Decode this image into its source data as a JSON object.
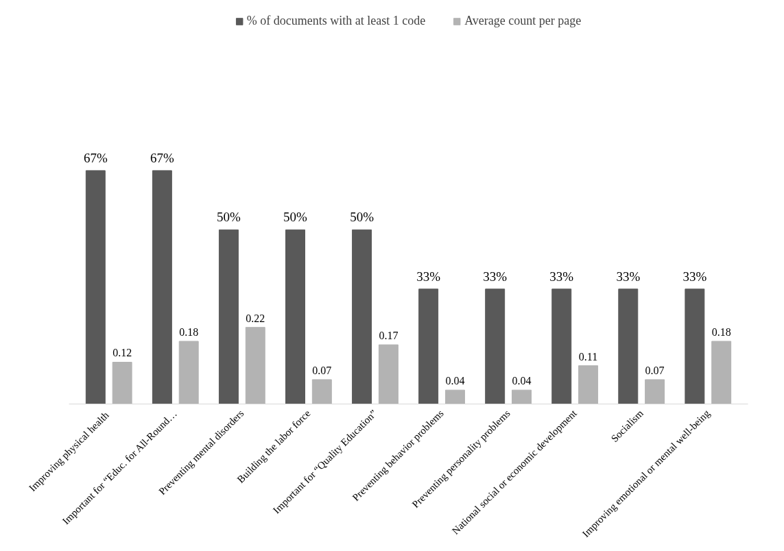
{
  "chart_data": {
    "type": "bar",
    "categories": [
      "Improving  physical health",
      "Important for “Educ. for All-Round…",
      "Preventing mental disorders",
      "Building the labor force",
      "Important for “Quality Education”",
      "Preventing behavior problems",
      "Preventing personality problems",
      "National social or economic development",
      "Socialism",
      "Improving emotional or mental well-being"
    ],
    "series": [
      {
        "name": "% of documents with at least 1 code",
        "color": "#595959",
        "values": [
          0.67,
          0.67,
          0.5,
          0.5,
          0.5,
          0.33,
          0.33,
          0.33,
          0.33,
          0.33
        ],
        "value_labels": [
          "67%",
          "67%",
          "50%",
          "50%",
          "50%",
          "33%",
          "33%",
          "33%",
          "33%",
          "33%"
        ]
      },
      {
        "name": "Average count per page",
        "color": "#b3b3b3",
        "values": [
          0.12,
          0.18,
          0.22,
          0.07,
          0.17,
          0.04,
          0.04,
          0.11,
          0.07,
          0.18
        ],
        "value_labels": [
          "0.12",
          "0.18",
          "0.22",
          "0.07",
          "0.17",
          "0.04",
          "0.04",
          "0.11",
          "0.07",
          "0.18"
        ]
      }
    ],
    "legend": "top",
    "grid": false
  }
}
